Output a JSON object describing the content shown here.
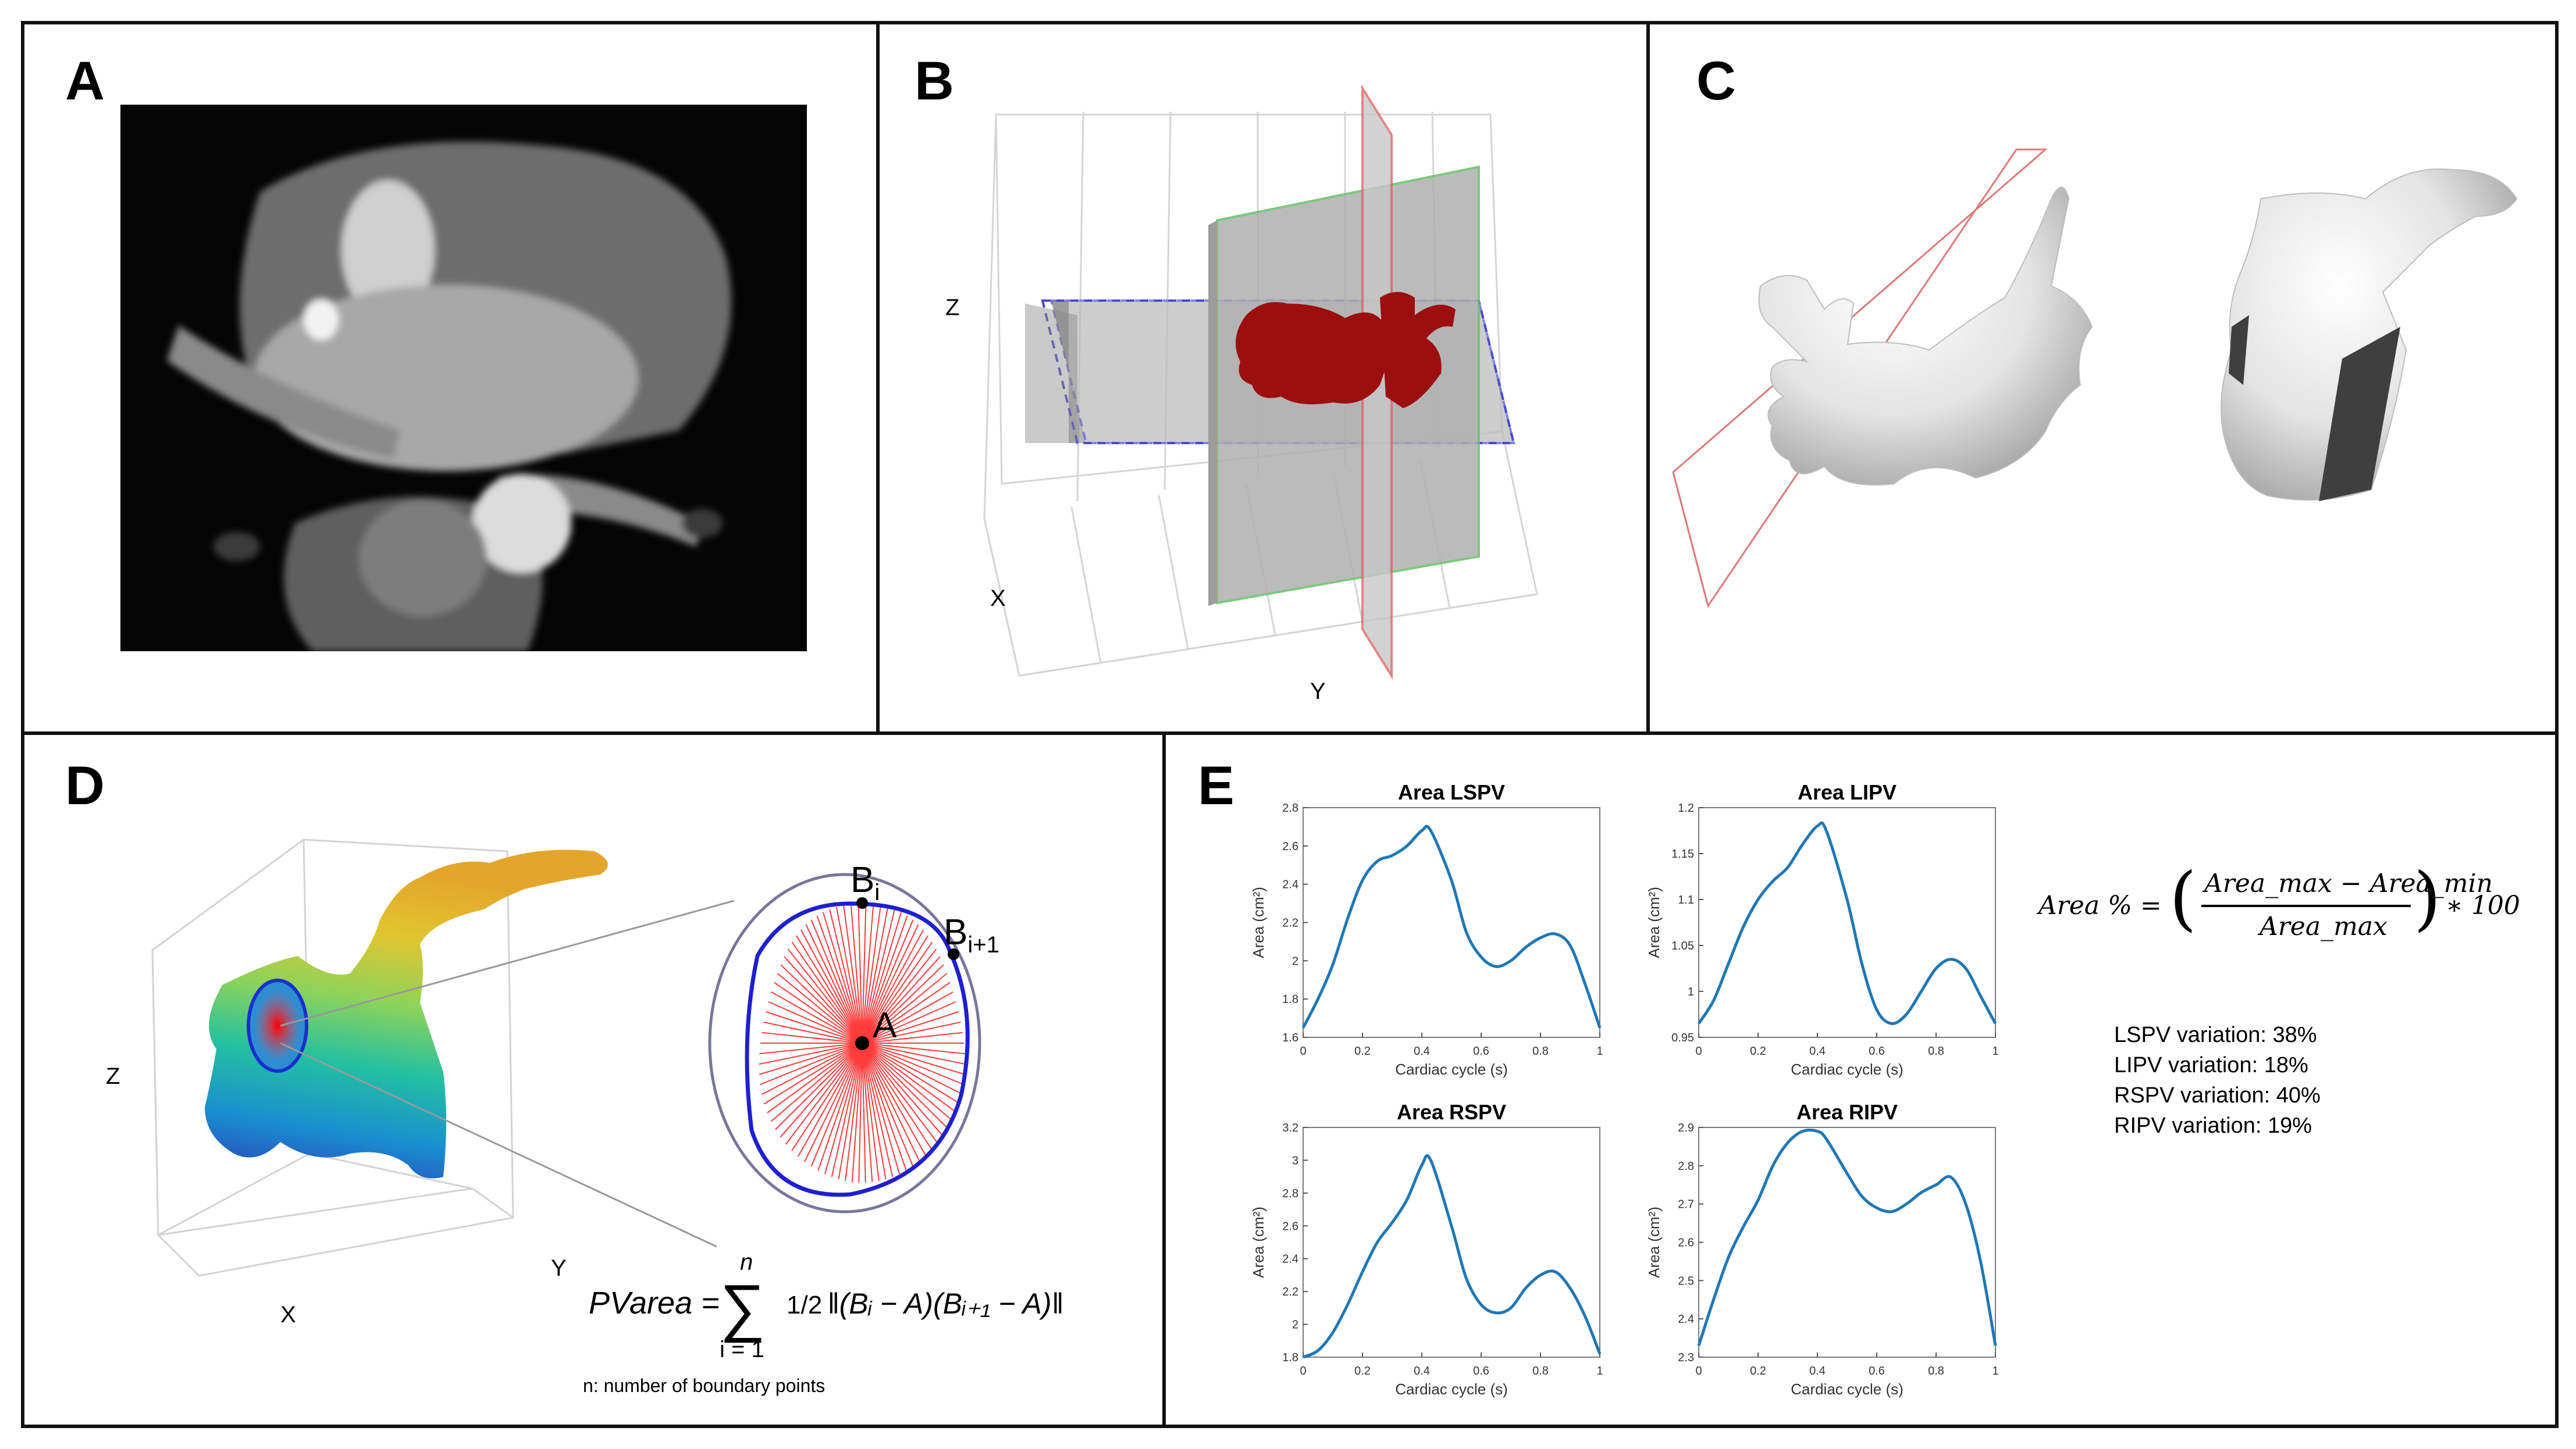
{
  "panels": {
    "a": "A",
    "b": "B",
    "c": "C",
    "d": "D",
    "e": "E"
  },
  "panel_b": {
    "axis_x": "X",
    "axis_y": "Y",
    "axis_z": "Z"
  },
  "panel_d": {
    "axis_x": "X",
    "axis_y": "Y",
    "axis_z": "Z",
    "point_bi": "B",
    "point_bi_sub": "i",
    "point_bi1": "B",
    "point_bi1_sub": "i+1",
    "point_a": "A",
    "formula_lhs": "PVarea =",
    "formula_rhs": "‖(Bᵢ − A)(Bᵢ₊₁ − A)‖",
    "formula_sum_top": "n",
    "formula_sum_bottom": "i = 1",
    "formula_frac": "1/2",
    "note": "n: number of boundary points"
  },
  "panel_e": {
    "formula_lhs": "Area % =",
    "formula_num": "Area_max − Area_min",
    "formula_den": "Area_max",
    "formula_tail": "∗ 100",
    "variations": [
      "LSPV variation: 38%",
      "LIPV variation: 18%",
      "RSPV variation: 40%",
      "RIPV variation: 19%"
    ]
  },
  "chart_data": [
    {
      "type": "line",
      "title": "Area LSPV",
      "xlabel": "Cardiac cycle (s)",
      "ylabel": "Area (cm²)",
      "xlim": [
        0,
        1
      ],
      "ylim": [
        1.6,
        2.8
      ],
      "xticks": [
        "0",
        "0.2",
        "0.4",
        "0.6",
        "0.8",
        "1"
      ],
      "yticks": [
        "1.6",
        "1.8",
        "2",
        "2.2",
        "2.4",
        "2.6",
        "2.8"
      ],
      "x": [
        0,
        0.05,
        0.1,
        0.15,
        0.2,
        0.25,
        0.3,
        0.35,
        0.4,
        0.43,
        0.5,
        0.55,
        0.6,
        0.65,
        0.7,
        0.75,
        0.8,
        0.85,
        0.9,
        0.95,
        1.0
      ],
      "y": [
        1.65,
        1.8,
        1.98,
        2.22,
        2.42,
        2.52,
        2.55,
        2.6,
        2.68,
        2.68,
        2.42,
        2.15,
        2.02,
        1.97,
        2.0,
        2.07,
        2.12,
        2.14,
        2.08,
        1.88,
        1.65
      ]
    },
    {
      "type": "line",
      "title": "Area LIPV",
      "xlabel": "Cardiac cycle (s)",
      "ylabel": "Area (cm²)",
      "xlim": [
        0,
        1
      ],
      "ylim": [
        0.95,
        1.2
      ],
      "xticks": [
        "0",
        "0.2",
        "0.4",
        "0.6",
        "0.8",
        "1"
      ],
      "yticks": [
        "0.95",
        "1",
        "1.05",
        "1.1",
        "1.15",
        "1.2"
      ],
      "x": [
        0,
        0.05,
        0.1,
        0.15,
        0.2,
        0.25,
        0.3,
        0.35,
        0.4,
        0.43,
        0.5,
        0.55,
        0.6,
        0.65,
        0.7,
        0.75,
        0.8,
        0.85,
        0.9,
        0.95,
        1.0
      ],
      "y": [
        0.965,
        0.99,
        1.03,
        1.07,
        1.1,
        1.12,
        1.135,
        1.16,
        1.18,
        1.175,
        1.1,
        1.03,
        0.98,
        0.965,
        0.975,
        1.0,
        1.025,
        1.035,
        1.025,
        0.995,
        0.965
      ]
    },
    {
      "type": "line",
      "title": "Area RSPV",
      "xlabel": "Cardiac cycle (s)",
      "ylabel": "Area (cm²)",
      "xlim": [
        0,
        1
      ],
      "ylim": [
        1.8,
        3.2
      ],
      "xticks": [
        "0",
        "0.2",
        "0.4",
        "0.6",
        "0.8",
        "1"
      ],
      "yticks": [
        "1.8",
        "2",
        "2.2",
        "2.4",
        "2.6",
        "2.8",
        "3",
        "3.2"
      ],
      "x": [
        0,
        0.05,
        0.1,
        0.15,
        0.2,
        0.25,
        0.3,
        0.35,
        0.4,
        0.43,
        0.5,
        0.55,
        0.6,
        0.65,
        0.7,
        0.75,
        0.8,
        0.85,
        0.9,
        0.95,
        1.0
      ],
      "y": [
        1.8,
        1.84,
        1.95,
        2.12,
        2.32,
        2.5,
        2.62,
        2.76,
        2.97,
        3.0,
        2.6,
        2.28,
        2.12,
        2.07,
        2.1,
        2.22,
        2.3,
        2.32,
        2.22,
        2.05,
        1.82
      ]
    },
    {
      "type": "line",
      "title": "Area RIPV",
      "xlabel": "Cardiac cycle (s)",
      "ylabel": "Area (cm²)",
      "xlim": [
        0,
        1
      ],
      "ylim": [
        2.3,
        2.9
      ],
      "xticks": [
        "0",
        "0.2",
        "0.4",
        "0.6",
        "0.8",
        "1"
      ],
      "yticks": [
        "2.3",
        "2.4",
        "2.5",
        "2.6",
        "2.7",
        "2.8",
        "2.9"
      ],
      "x": [
        0,
        0.05,
        0.1,
        0.15,
        0.2,
        0.25,
        0.3,
        0.35,
        0.4,
        0.43,
        0.5,
        0.55,
        0.6,
        0.65,
        0.7,
        0.75,
        0.8,
        0.85,
        0.9,
        0.95,
        1.0
      ],
      "y": [
        2.33,
        2.45,
        2.56,
        2.64,
        2.71,
        2.8,
        2.86,
        2.89,
        2.89,
        2.87,
        2.78,
        2.72,
        2.69,
        2.68,
        2.7,
        2.73,
        2.75,
        2.77,
        2.7,
        2.55,
        2.33
      ]
    }
  ]
}
